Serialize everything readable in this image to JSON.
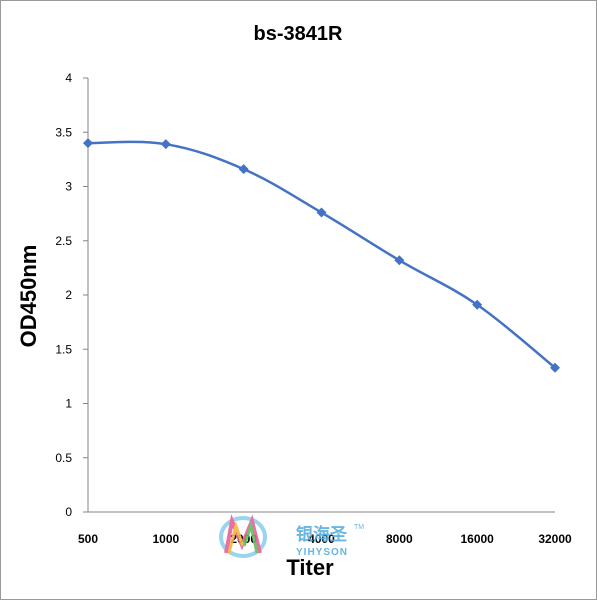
{
  "chart_data": {
    "type": "line",
    "title": "bs-3841R",
    "xlabel": "Titer",
    "ylabel": "OD450nm",
    "categories": [
      "500",
      "1000",
      "2000",
      "4000",
      "8000",
      "16000",
      "32000"
    ],
    "series": [
      {
        "values": [
          3.4,
          3.39,
          3.16,
          2.76,
          2.32,
          1.91,
          1.33
        ]
      }
    ],
    "ylim": [
      0,
      4
    ],
    "yticks": [
      "0",
      "0.5",
      "1",
      "1.5",
      "2",
      "2.5",
      "3",
      "3.5",
      "4"
    ],
    "grid": false,
    "legend": "none",
    "colors": {
      "series": "#4472c4",
      "axis": "#868686"
    }
  },
  "watermark": {
    "text_cn": "银海圣",
    "text_en": "YIHYSON",
    "tm": "TM"
  }
}
